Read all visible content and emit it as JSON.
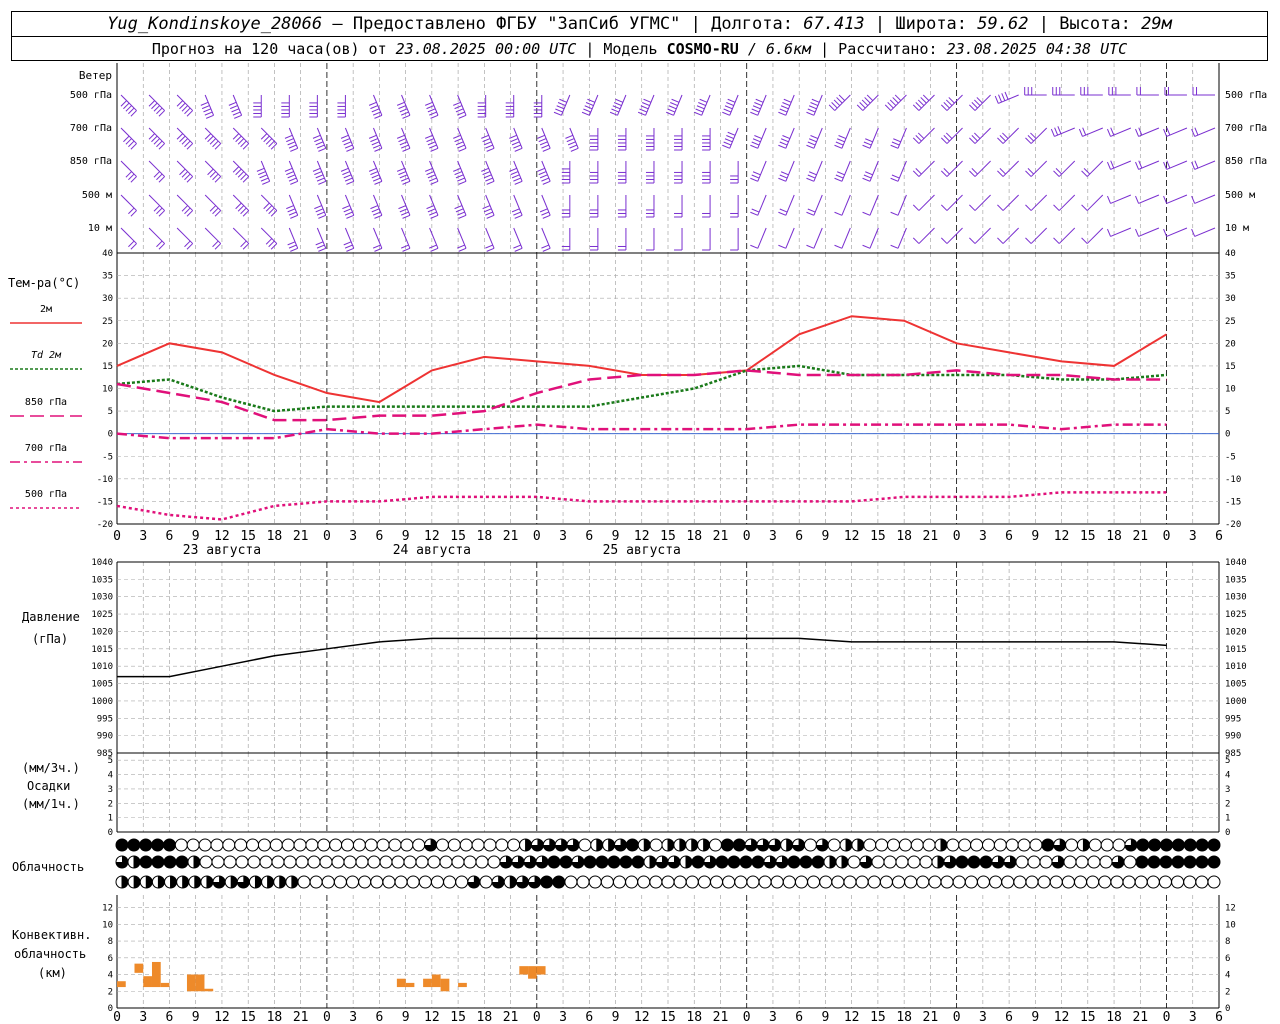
{
  "header": {
    "station": "Yug_Kondinskoye_28066",
    "provided_by": "– Предоставлено ФГБУ \"ЗапСиб УГМС\"",
    "lon_label": "| Долгота:",
    "lon_value": "67.413",
    "lat_label": "| Широта:",
    "lat_value": "59.62",
    "alt_label": "| Высота:",
    "alt_value": "29м",
    "forecast_label": "Прогноз на 120 часа(ов) от",
    "forecast_start": "23.08.2025 00:00 UTC",
    "model_label": "| Модель",
    "model_name": "COSMO-RU",
    "model_res": "/ 6.6км",
    "calc_label": "| Рассчитано:",
    "calc_time": "23.08.2025 04:38 UTC"
  },
  "panels": {
    "wind": {
      "title": "Ветер",
      "levels": [
        "500 гПа",
        "700 гПа",
        "850 гПа",
        "500 м",
        "10  м"
      ],
      "color": "#7a2fd0"
    },
    "temp": {
      "title": "Тем-ра(°C)",
      "legend": [
        {
          "label": "2м",
          "color": "#ee3333",
          "dash": ""
        },
        {
          "label": "Td  2м",
          "color": "#1a7a1a",
          "dash": "3,2"
        },
        {
          "label": "850 гПа",
          "color": "#e0107a",
          "dash": "14,6"
        },
        {
          "label": "700 гПа",
          "color": "#e0107a",
          "dash": "10,4,3,4"
        },
        {
          "label": "500 гПа",
          "color": "#e0107a",
          "dash": "3,3"
        }
      ]
    },
    "pressure": {
      "title": "Давление",
      "unit": "(гПа)"
    },
    "precip": {
      "unit_top": "(мм/3ч.)",
      "title": "Осадки",
      "unit_bottom": "(мм/1ч.)"
    },
    "cloud": {
      "title": "Облачность"
    },
    "conv": {
      "title1": "Конвективн.",
      "title2": "облачность",
      "unit": "(км)",
      "color": "#ee8a2a"
    }
  },
  "day_labels": [
    "23 августа",
    "24 августа",
    "25 августа"
  ],
  "hour_labels": [
    "0",
    "3",
    "6",
    "9",
    "12",
    "15",
    "18",
    "21"
  ],
  "chart_data": [
    {
      "type": "line",
      "id": "temperature",
      "ylim": [
        -20,
        40
      ],
      "x_hours": [
        0,
        6,
        12,
        18,
        24,
        30,
        36,
        42,
        48,
        54,
        60,
        66,
        72,
        78,
        84,
        90,
        96,
        102,
        108,
        114,
        120
      ],
      "series": [
        {
          "name": "2м",
          "values": [
            15,
            20,
            18,
            13,
            9,
            7,
            14,
            17,
            16,
            15,
            13,
            13,
            14,
            22,
            26,
            25,
            20,
            18,
            16,
            15,
            22
          ]
        },
        {
          "name": "Td 2м",
          "values": [
            11,
            12,
            8,
            5,
            6,
            6,
            6,
            6,
            6,
            6,
            8,
            10,
            14,
            15,
            13,
            13,
            13,
            13,
            12,
            12,
            13
          ]
        },
        {
          "name": "850 гПа",
          "values": [
            11,
            9,
            7,
            3,
            3,
            4,
            4,
            5,
            9,
            12,
            13,
            13,
            14,
            13,
            13,
            13,
            14,
            13,
            13,
            12,
            12
          ]
        },
        {
          "name": "700 гПа",
          "values": [
            0,
            -1,
            -1,
            -1,
            1,
            0,
            0,
            1,
            2,
            1,
            1,
            1,
            1,
            2,
            2,
            2,
            2,
            2,
            1,
            2,
            2
          ]
        },
        {
          "name": "500 гПа",
          "values": [
            -16,
            -18,
            -19,
            -16,
            -15,
            -15,
            -14,
            -14,
            -14,
            -15,
            -15,
            -15,
            -15,
            -15,
            -15,
            -14,
            -14,
            -14,
            -13,
            -13,
            -13
          ]
        }
      ]
    },
    {
      "type": "line",
      "id": "pressure",
      "ylim": [
        985,
        1040
      ],
      "x_hours": [
        0,
        6,
        12,
        18,
        24,
        30,
        36,
        42,
        48,
        54,
        60,
        66,
        72,
        78,
        84,
        90,
        96,
        102,
        108,
        114,
        120
      ],
      "series": [
        {
          "name": "Давление",
          "values": [
            1007,
            1007,
            1010,
            1013,
            1015,
            1017,
            1018,
            1018,
            1018,
            1018,
            1018,
            1018,
            1018,
            1018,
            1017,
            1017,
            1017,
            1017,
            1017,
            1017,
            1016
          ]
        }
      ]
    },
    {
      "type": "bar",
      "id": "convective_cloud",
      "ylim": [
        0,
        13
      ],
      "bars": [
        {
          "hour": 0,
          "base": 2.5,
          "top": 3.2
        },
        {
          "hour": 2,
          "base": 4.2,
          "top": 5.3
        },
        {
          "hour": 3,
          "base": 2.5,
          "top": 3.8
        },
        {
          "hour": 4,
          "base": 2.5,
          "top": 5.5
        },
        {
          "hour": 5,
          "base": 2.5,
          "top": 3.0
        },
        {
          "hour": 8,
          "base": 2.0,
          "top": 4.0
        },
        {
          "hour": 9,
          "base": 2.0,
          "top": 4.0
        },
        {
          "hour": 10,
          "base": 2.0,
          "top": 2.3
        },
        {
          "hour": 32,
          "base": 2.5,
          "top": 3.5
        },
        {
          "hour": 33,
          "base": 2.5,
          "top": 3.0
        },
        {
          "hour": 35,
          "base": 2.5,
          "top": 3.5
        },
        {
          "hour": 36,
          "base": 2.5,
          "top": 4.0
        },
        {
          "hour": 37,
          "base": 2.0,
          "top": 3.5
        },
        {
          "hour": 39,
          "base": 2.5,
          "top": 3.0
        },
        {
          "hour": 46,
          "base": 4.0,
          "top": 5.0
        },
        {
          "hour": 47,
          "base": 3.5,
          "top": 5.0
        },
        {
          "hour": 48,
          "base": 4.0,
          "top": 5.0
        }
      ]
    }
  ],
  "cloud_rows": {
    "high": "FFFFFCCCCCCCCCCCCCCCCCCCCCQCCCCCCCHQQQQCHHQFHCHHHHCFFQQQHQCQCHHCCCCCCHCCCCCCCCFQCHCCCQFFFFFFF",
    "mid": "QHFFFFHCCCCCCCCCCCCCCCCCCCCCCCCCQQQQFFQFFFFFHQQHFQFFFFQQFFFHHCQCCCCCHQFFFQQCCCQCCCCQCFFFFFFF",
    "low": "HHHHHHHHQHQHHHHCCCCCCCCCCCCCCQCQHQQFFCCCCCCCCCCCCCCCCCCCCCCCCCCCCCCCCCCCCCCCCCCCCCCCCCCCCCC"
  },
  "wind_barbs": {
    "500": [
      [
        6,
        10
      ],
      [
        6,
        11
      ],
      [
        6,
        12
      ],
      [
        7,
        13
      ],
      [
        7,
        14
      ],
      [
        8,
        16
      ],
      [
        8,
        17
      ],
      [
        8,
        18
      ],
      [
        8,
        19
      ],
      [
        7,
        19
      ],
      [
        7,
        20
      ],
      [
        7,
        20
      ],
      [
        7,
        21
      ],
      [
        8,
        21
      ],
      [
        8,
        22
      ],
      [
        8,
        22
      ],
      [
        9,
        21
      ],
      [
        9,
        20
      ],
      [
        9,
        20
      ],
      [
        9,
        19
      ],
      [
        9,
        18
      ],
      [
        9,
        17
      ],
      [
        9,
        16
      ],
      [
        9,
        15
      ],
      [
        9,
        14
      ],
      [
        9,
        13
      ],
      [
        10,
        12
      ],
      [
        10,
        11
      ],
      [
        10,
        10
      ],
      [
        10,
        9
      ],
      [
        10,
        8
      ],
      [
        10,
        8
      ],
      [
        11,
        7
      ],
      [
        12,
        6
      ],
      [
        12,
        5
      ],
      [
        12,
        5
      ],
      [
        12,
        5
      ],
      [
        12,
        4
      ],
      [
        12,
        4
      ],
      [
        12,
        4
      ]
    ],
    "700": [
      [
        6,
        8
      ],
      [
        6,
        9
      ],
      [
        6,
        10
      ],
      [
        6,
        10
      ],
      [
        6,
        11
      ],
      [
        6,
        12
      ],
      [
        7,
        13
      ],
      [
        7,
        14
      ],
      [
        7,
        14
      ],
      [
        7,
        14
      ],
      [
        7,
        13
      ],
      [
        7,
        13
      ],
      [
        7,
        13
      ],
      [
        7,
        13
      ],
      [
        7,
        13
      ],
      [
        7,
        12
      ],
      [
        7,
        12
      ],
      [
        8,
        11
      ],
      [
        8,
        10
      ],
      [
        8,
        10
      ],
      [
        8,
        9
      ],
      [
        8,
        9
      ],
      [
        9,
        9
      ],
      [
        9,
        8
      ],
      [
        9,
        8
      ],
      [
        9,
        7
      ],
      [
        9,
        7
      ],
      [
        9,
        6
      ],
      [
        9,
        6
      ],
      [
        10,
        6
      ],
      [
        10,
        6
      ],
      [
        10,
        5
      ],
      [
        10,
        5
      ],
      [
        10,
        5
      ],
      [
        11,
        5
      ],
      [
        11,
        4
      ],
      [
        11,
        4
      ],
      [
        11,
        4
      ],
      [
        11,
        4
      ],
      [
        11,
        4
      ]
    ],
    "850": [
      [
        6,
        5
      ],
      [
        6,
        6
      ],
      [
        6,
        7
      ],
      [
        6,
        8
      ],
      [
        6,
        9
      ],
      [
        7,
        9
      ],
      [
        7,
        10
      ],
      [
        7,
        10
      ],
      [
        7,
        11
      ],
      [
        7,
        11
      ],
      [
        7,
        11
      ],
      [
        7,
        10
      ],
      [
        7,
        10
      ],
      [
        7,
        10
      ],
      [
        7,
        10
      ],
      [
        7,
        9
      ],
      [
        8,
        9
      ],
      [
        8,
        8
      ],
      [
        8,
        8
      ],
      [
        8,
        7
      ],
      [
        8,
        7
      ],
      [
        8,
        7
      ],
      [
        8,
        6
      ],
      [
        9,
        6
      ],
      [
        9,
        6
      ],
      [
        9,
        5
      ],
      [
        9,
        5
      ],
      [
        9,
        5
      ],
      [
        9,
        4
      ],
      [
        10,
        4
      ],
      [
        10,
        4
      ],
      [
        10,
        3
      ],
      [
        10,
        3
      ],
      [
        10,
        3
      ],
      [
        10,
        3
      ],
      [
        10,
        3
      ],
      [
        11,
        3
      ],
      [
        11,
        3
      ],
      [
        11,
        3
      ],
      [
        11,
        3
      ]
    ],
    "500m": [
      [
        6,
        4
      ],
      [
        6,
        5
      ],
      [
        6,
        6
      ],
      [
        6,
        6
      ],
      [
        6,
        7
      ],
      [
        6,
        8
      ],
      [
        7,
        8
      ],
      [
        7,
        8
      ],
      [
        7,
        8
      ],
      [
        7,
        8
      ],
      [
        7,
        8
      ],
      [
        7,
        7
      ],
      [
        7,
        7
      ],
      [
        7,
        7
      ],
      [
        7,
        6
      ],
      [
        7,
        6
      ],
      [
        8,
        6
      ],
      [
        8,
        5
      ],
      [
        8,
        5
      ],
      [
        8,
        5
      ],
      [
        8,
        4
      ],
      [
        8,
        4
      ],
      [
        8,
        3
      ],
      [
        9,
        3
      ],
      [
        9,
        3
      ],
      [
        9,
        3
      ],
      [
        9,
        2
      ],
      [
        9,
        2
      ],
      [
        9,
        2
      ],
      [
        10,
        2
      ],
      [
        10,
        2
      ],
      [
        10,
        2
      ],
      [
        10,
        2
      ],
      [
        10,
        2
      ],
      [
        10,
        2
      ],
      [
        10,
        2
      ],
      [
        11,
        2
      ],
      [
        11,
        2
      ],
      [
        11,
        2
      ],
      [
        11,
        2
      ]
    ],
    "10m": [
      [
        6,
        3
      ],
      [
        6,
        3
      ],
      [
        6,
        4
      ],
      [
        6,
        4
      ],
      [
        6,
        4
      ],
      [
        6,
        5
      ],
      [
        7,
        5
      ],
      [
        7,
        5
      ],
      [
        7,
        5
      ],
      [
        7,
        4
      ],
      [
        7,
        4
      ],
      [
        7,
        4
      ],
      [
        7,
        4
      ],
      [
        7,
        4
      ],
      [
        7,
        3
      ],
      [
        7,
        3
      ],
      [
        8,
        3
      ],
      [
        8,
        3
      ],
      [
        8,
        3
      ],
      [
        8,
        2
      ],
      [
        8,
        2
      ],
      [
        8,
        2
      ],
      [
        8,
        2
      ],
      [
        9,
        2
      ],
      [
        9,
        2
      ],
      [
        9,
        1
      ],
      [
        9,
        1
      ],
      [
        9,
        1
      ],
      [
        9,
        1
      ],
      [
        10,
        1
      ],
      [
        10,
        1
      ],
      [
        10,
        1
      ],
      [
        10,
        1
      ],
      [
        10,
        1
      ],
      [
        10,
        1
      ],
      [
        10,
        1
      ],
      [
        11,
        1
      ],
      [
        11,
        1
      ],
      [
        11,
        1
      ],
      [
        11,
        1
      ]
    ]
  }
}
